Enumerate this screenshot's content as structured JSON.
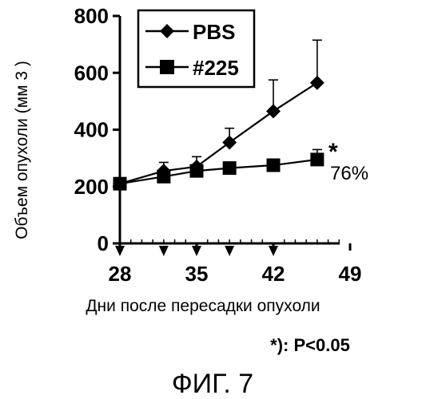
{
  "chart_data": {
    "type": "line",
    "ylabel": "Объем опухоли (мм 3 )",
    "xlabel": "Дни после пересадки опухоли",
    "xticks": [
      28,
      35,
      42,
      49
    ],
    "yticks": [
      0,
      200,
      400,
      600,
      800
    ],
    "xlim": [
      28,
      49
    ],
    "ylim": [
      0,
      800
    ],
    "treatment_days": [
      28,
      32,
      35,
      38,
      42
    ],
    "legend_position": "top-left",
    "series": [
      {
        "name": "PBS",
        "marker": "diamond",
        "x": [
          28,
          32,
          35,
          38,
          42,
          46
        ],
        "y": [
          210,
          255,
          270,
          355,
          465,
          565
        ],
        "err": [
          0,
          30,
          35,
          50,
          110,
          150
        ]
      },
      {
        "name": "#225",
        "marker": "square",
        "x": [
          28,
          32,
          35,
          38,
          42,
          46
        ],
        "y": [
          210,
          235,
          255,
          265,
          275,
          295
        ],
        "err": [
          0,
          15,
          15,
          15,
          15,
          35
        ]
      }
    ],
    "annotations": {
      "star": "*",
      "percent": "76%"
    },
    "significance_note": "*): P<0.05"
  },
  "figure_label": "ФИГ. 7"
}
